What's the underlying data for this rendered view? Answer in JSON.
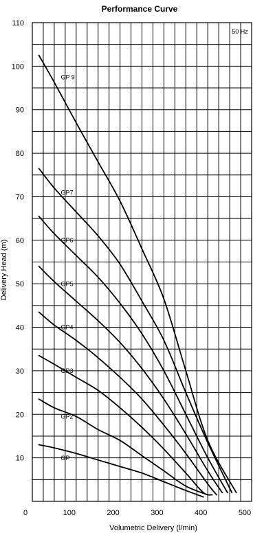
{
  "chart_data": {
    "type": "line",
    "title": "Performance Curve",
    "xlabel": "Volumetric Delivery (l/min)",
    "ylabel": "Delivery Head (m)",
    "xlim": [
      0,
      500
    ],
    "ylim": [
      0,
      110
    ],
    "xticks": [
      0,
      100,
      200,
      300,
      400,
      500
    ],
    "yticks": [
      10,
      20,
      30,
      40,
      50,
      60,
      70,
      80,
      90,
      100,
      110
    ],
    "grid": true,
    "frequency_note": "50 Hz",
    "colors": {
      "curve": "#000000",
      "grid": "#000000",
      "background": "#ffffff"
    },
    "series": [
      {
        "name": "GP9",
        "points": [
          [
            15,
            102.5
          ],
          [
            50,
            96.3
          ],
          [
            100,
            87
          ],
          [
            150,
            78
          ],
          [
            200,
            69
          ],
          [
            250,
            58
          ],
          [
            300,
            46.5
          ],
          [
            350,
            30
          ],
          [
            400,
            14
          ],
          [
            465,
            2
          ]
        ]
      },
      {
        "name": "GP7",
        "points": [
          [
            15,
            76.5
          ],
          [
            50,
            72
          ],
          [
            100,
            66.5
          ],
          [
            150,
            61
          ],
          [
            200,
            54.5
          ],
          [
            250,
            46
          ],
          [
            300,
            37
          ],
          [
            350,
            25
          ],
          [
            400,
            13.5
          ],
          [
            455,
            2
          ]
        ]
      },
      {
        "name": "GP6",
        "points": [
          [
            15,
            65.5
          ],
          [
            50,
            61.5
          ],
          [
            100,
            56.5
          ],
          [
            150,
            51.5
          ],
          [
            200,
            45.5
          ],
          [
            250,
            38.5
          ],
          [
            300,
            30
          ],
          [
            350,
            20
          ],
          [
            400,
            10
          ],
          [
            445,
            2
          ]
        ]
      },
      {
        "name": "GP5",
        "points": [
          [
            15,
            54
          ],
          [
            50,
            50.5
          ],
          [
            100,
            46
          ],
          [
            150,
            41.5
          ],
          [
            200,
            36.5
          ],
          [
            250,
            30.5
          ],
          [
            300,
            23.5
          ],
          [
            350,
            15.5
          ],
          [
            400,
            7
          ],
          [
            433,
            2
          ]
        ]
      },
      {
        "name": "GP4",
        "points": [
          [
            15,
            43.5
          ],
          [
            50,
            40.5
          ],
          [
            100,
            37
          ],
          [
            150,
            33
          ],
          [
            200,
            28.5
          ],
          [
            250,
            23.5
          ],
          [
            300,
            17.5
          ],
          [
            350,
            11
          ],
          [
            400,
            4
          ],
          [
            420,
            1.5
          ]
        ]
      },
      {
        "name": "GP3",
        "points": [
          [
            15,
            33.5
          ],
          [
            50,
            31.5
          ],
          [
            100,
            28.5
          ],
          [
            150,
            25.5
          ],
          [
            200,
            21.5
          ],
          [
            250,
            17
          ],
          [
            300,
            12
          ],
          [
            350,
            6.5
          ],
          [
            390,
            2
          ],
          [
            410,
            1.5
          ]
        ]
      },
      {
        "name": "GP2",
        "points": [
          [
            15,
            23.5
          ],
          [
            50,
            21.5
          ],
          [
            100,
            19.5
          ],
          [
            150,
            16.5
          ],
          [
            200,
            14
          ],
          [
            250,
            10.5
          ],
          [
            300,
            7
          ],
          [
            350,
            3.5
          ],
          [
            400,
            1.5
          ]
        ]
      },
      {
        "name": "GP",
        "points": [
          [
            15,
            13
          ],
          [
            50,
            12.3
          ],
          [
            100,
            11
          ],
          [
            150,
            9.5
          ],
          [
            200,
            8
          ],
          [
            250,
            6.5
          ],
          [
            300,
            4.5
          ],
          [
            350,
            2.5
          ],
          [
            390,
            1
          ]
        ]
      }
    ],
    "labels": [
      {
        "text": "GP 9",
        "x": 65,
        "y": 97
      },
      {
        "text": "GP7",
        "x": 65,
        "y": 70.5
      },
      {
        "text": "GP6",
        "x": 65,
        "y": 59.5
      },
      {
        "text": "GP5",
        "x": 65,
        "y": 49.5
      },
      {
        "text": "GP4",
        "x": 65,
        "y": 39.5
      },
      {
        "text": "GP3",
        "x": 65,
        "y": 29.5
      },
      {
        "text": "GP2",
        "x": 65,
        "y": 19
      },
      {
        "text": "GP",
        "x": 65,
        "y": 9.5
      }
    ]
  }
}
